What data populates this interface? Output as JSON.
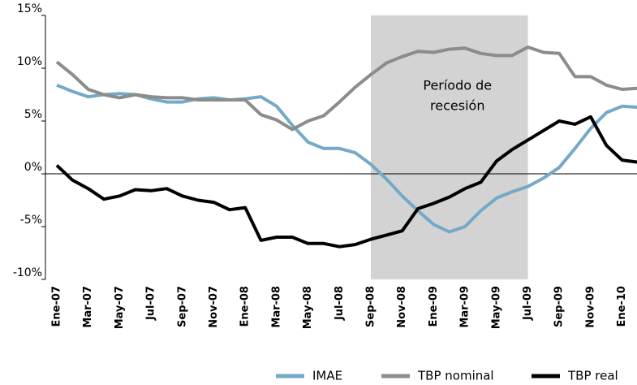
{
  "chart_data": {
    "type": "line",
    "categories": [
      "Ene-07",
      null,
      "Mar-07",
      null,
      "May-07",
      null,
      "Jul-07",
      null,
      "Sep-07",
      null,
      "Nov-07",
      null,
      "Ene-08",
      null,
      "Mar-08",
      null,
      "May-08",
      null,
      "Jul-08",
      null,
      "Sep-08",
      null,
      "Nov-08",
      null,
      "Ene-09",
      null,
      "Mar-09",
      null,
      "May-09",
      null,
      "Jul-09",
      null,
      "Sep-09",
      null,
      "Nov-09",
      null,
      "Ene-10",
      null
    ],
    "series": [
      {
        "name": "IMAE",
        "color": "#74a9c8",
        "values": [
          8.4,
          7.8,
          7.3,
          7.5,
          7.6,
          7.5,
          7.1,
          6.8,
          6.8,
          7.1,
          7.2,
          7.0,
          7.1,
          7.3,
          6.4,
          4.6,
          3.0,
          2.4,
          2.4,
          2.0,
          0.9,
          -0.5,
          -2.1,
          -3.5,
          -4.8,
          -5.5,
          -5.0,
          -3.5,
          -2.3,
          -1.7,
          -1.2,
          -0.4,
          0.6,
          2.4,
          4.3,
          5.8,
          6.4,
          6.3
        ]
      },
      {
        "name": "TBP nominal",
        "color": "#8c8c8c",
        "values": [
          10.6,
          9.4,
          8.0,
          7.5,
          7.2,
          7.5,
          7.3,
          7.2,
          7.2,
          7.0,
          7.0,
          7.0,
          7.0,
          5.6,
          5.1,
          4.2,
          5.0,
          5.5,
          6.8,
          8.2,
          9.4,
          10.5,
          11.1,
          11.6,
          11.5,
          11.8,
          11.9,
          11.4,
          11.2,
          11.2,
          12.0,
          11.5,
          11.4,
          9.2,
          9.2,
          8.4,
          8.0,
          8.1
        ]
      },
      {
        "name": "TBP real",
        "color": "#000000",
        "values": [
          0.8,
          -0.6,
          -1.4,
          -2.4,
          -2.1,
          -1.5,
          -1.6,
          -1.4,
          -2.1,
          -2.5,
          -2.7,
          -3.4,
          -3.2,
          -6.3,
          -6.0,
          -6.0,
          -6.6,
          -6.6,
          -6.9,
          -6.7,
          -6.2,
          -5.8,
          -5.4,
          -3.3,
          -2.8,
          -2.2,
          -1.4,
          -0.8,
          1.2,
          2.3,
          3.2,
          4.1,
          5.0,
          4.7,
          5.4,
          2.7,
          1.3,
          1.1
        ]
      }
    ],
    "ylim": [
      -10,
      15
    ],
    "yticks": [
      {
        "value": -10,
        "label": "-10%"
      },
      {
        "value": -5,
        "label": "-5%"
      },
      {
        "value": 0,
        "label": "0%"
      },
      {
        "value": 5,
        "label": "5%"
      },
      {
        "value": 10,
        "label": "10%"
      },
      {
        "value": 15,
        "label": "15%"
      }
    ],
    "recession": {
      "from": "Sep-08",
      "to": "Jul-09",
      "shade": "#d3d3d3",
      "label_lines": [
        "Período de",
        "recesión"
      ]
    },
    "legend": "lower-right"
  }
}
